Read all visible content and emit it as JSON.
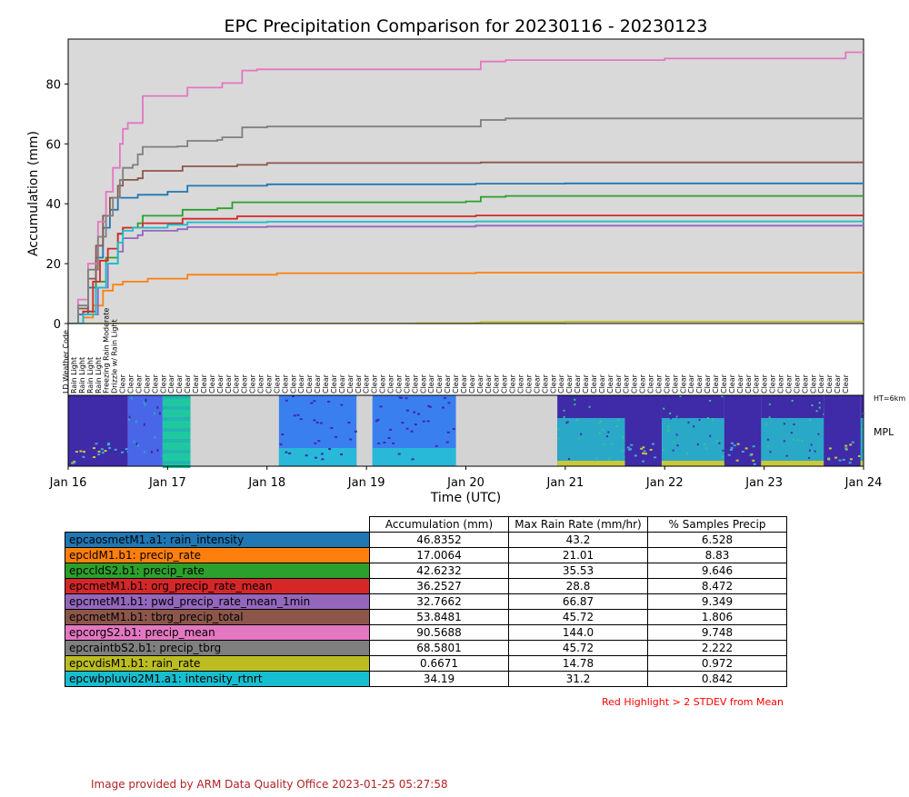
{
  "chart_data": [
    {
      "type": "line",
      "title": "EPC Precipitation Comparison for 20230116 - 20230123",
      "xlabel": "Time (UTC)",
      "ylabel": "Accumulation (mm)",
      "x_ticks": [
        "Jan 16",
        "Jan 17",
        "Jan 18",
        "Jan 19",
        "Jan 20",
        "Jan 21",
        "Jan 22",
        "Jan 23",
        "Jan 24"
      ],
      "xlim_days": [
        16,
        24
      ],
      "ylim": [
        0,
        95
      ],
      "y_ticks": [
        0,
        20,
        40,
        60,
        80
      ],
      "background": "#d9d9d9",
      "series": [
        {
          "name": "epcaosmetM1.a1: rain_intensity",
          "color": "#1f77b4",
          "points": [
            [
              16.0,
              0
            ],
            [
              16.1,
              3
            ],
            [
              16.2,
              12
            ],
            [
              16.28,
              22
            ],
            [
              16.35,
              32
            ],
            [
              16.42,
              38
            ],
            [
              16.5,
              42
            ],
            [
              16.7,
              43
            ],
            [
              17.0,
              44
            ],
            [
              17.2,
              46
            ],
            [
              18.0,
              46.5
            ],
            [
              20.1,
              46.7
            ],
            [
              21.0,
              46.8
            ],
            [
              24.0,
              46.8
            ]
          ]
        },
        {
          "name": "epcldM1.b1: precip_rate",
          "color": "#ff7f0e",
          "points": [
            [
              16.0,
              0
            ],
            [
              16.15,
              2
            ],
            [
              16.25,
              6
            ],
            [
              16.35,
              11
            ],
            [
              16.45,
              13
            ],
            [
              16.55,
              14
            ],
            [
              16.8,
              15
            ],
            [
              17.2,
              16.3
            ],
            [
              18.1,
              16.8
            ],
            [
              20.1,
              17.0
            ],
            [
              24.0,
              17.0
            ]
          ]
        },
        {
          "name": "epccldS2.b1: precip_rate",
          "color": "#2ca02c",
          "points": [
            [
              16.0,
              0
            ],
            [
              16.15,
              4
            ],
            [
              16.28,
              14
            ],
            [
              16.38,
              22
            ],
            [
              16.5,
              30
            ],
            [
              16.55,
              32
            ],
            [
              16.7,
              33.5
            ],
            [
              16.75,
              36
            ],
            [
              17.0,
              36
            ],
            [
              17.15,
              38
            ],
            [
              17.5,
              38.5
            ],
            [
              17.65,
              40.5
            ],
            [
              20.0,
              40.8
            ],
            [
              20.15,
              42.3
            ],
            [
              20.4,
              42.6
            ],
            [
              24.0,
              42.6
            ]
          ]
        },
        {
          "name": "epcmetM1.b1: org_precip_rate_mean",
          "color": "#d62728",
          "points": [
            [
              16.0,
              0
            ],
            [
              16.15,
              4
            ],
            [
              16.25,
              14
            ],
            [
              16.32,
              21
            ],
            [
              16.4,
              25
            ],
            [
              16.5,
              30
            ],
            [
              16.55,
              32
            ],
            [
              16.75,
              33.5
            ],
            [
              17.15,
              35
            ],
            [
              17.6,
              35
            ],
            [
              17.7,
              35.8
            ],
            [
              20.1,
              36.1
            ],
            [
              24.0,
              36.3
            ]
          ]
        },
        {
          "name": "epcmetM1.b1: pwd_precip_rate_mean_1min",
          "color": "#9467bd",
          "points": [
            [
              16.0,
              0
            ],
            [
              16.15,
              3
            ],
            [
              16.3,
              12
            ],
            [
              16.4,
              20
            ],
            [
              16.5,
              24
            ],
            [
              16.55,
              28.5
            ],
            [
              16.7,
              29.5
            ],
            [
              16.75,
              31
            ],
            [
              17.1,
              31.5
            ],
            [
              17.2,
              32.2
            ],
            [
              18.0,
              32.4
            ],
            [
              20.1,
              32.7
            ],
            [
              24.0,
              32.8
            ]
          ]
        },
        {
          "name": "epcmetM1.b1: tbrg_precip_total",
          "color": "#8c564b",
          "points": [
            [
              16.0,
              0
            ],
            [
              16.1,
              5
            ],
            [
              16.2,
              15
            ],
            [
              16.28,
              26
            ],
            [
              16.35,
              36
            ],
            [
              16.42,
              42
            ],
            [
              16.5,
              46
            ],
            [
              16.55,
              48
            ],
            [
              16.7,
              48.5
            ],
            [
              16.75,
              51
            ],
            [
              17.1,
              51
            ],
            [
              17.15,
              52.5
            ],
            [
              17.7,
              53
            ],
            [
              18.0,
              53.6
            ],
            [
              20.15,
              53.8
            ],
            [
              24.0,
              53.8
            ]
          ]
        },
        {
          "name": "epcorgS2.b1: precip_mean",
          "color": "#e377c2",
          "points": [
            [
              16.0,
              0
            ],
            [
              16.1,
              8
            ],
            [
              16.2,
              20
            ],
            [
              16.3,
              34
            ],
            [
              16.38,
              44
            ],
            [
              16.45,
              52
            ],
            [
              16.52,
              60
            ],
            [
              16.55,
              65
            ],
            [
              16.6,
              67
            ],
            [
              16.7,
              67
            ],
            [
              16.75,
              76
            ],
            [
              17.1,
              76
            ],
            [
              17.2,
              78.8
            ],
            [
              17.5,
              78.8
            ],
            [
              17.55,
              80.3
            ],
            [
              17.7,
              80.3
            ],
            [
              17.75,
              84.5
            ],
            [
              17.9,
              84.9
            ],
            [
              20.1,
              84.9
            ],
            [
              20.15,
              87.5
            ],
            [
              20.4,
              88
            ],
            [
              22.0,
              88.5
            ],
            [
              23.8,
              88.6
            ],
            [
              23.82,
              90.6
            ],
            [
              24.0,
              90.6
            ]
          ]
        },
        {
          "name": "epcraintbS2.b1: precip_tbrg",
          "color": "#7f7f7f",
          "points": [
            [
              16.0,
              0
            ],
            [
              16.1,
              6
            ],
            [
              16.2,
              18
            ],
            [
              16.3,
              29
            ],
            [
              16.38,
              36
            ],
            [
              16.45,
              42
            ],
            [
              16.52,
              48
            ],
            [
              16.55,
              52
            ],
            [
              16.65,
              53
            ],
            [
              16.7,
              56.5
            ],
            [
              16.75,
              59
            ],
            [
              17.1,
              59.2
            ],
            [
              17.2,
              61
            ],
            [
              17.5,
              61.3
            ],
            [
              17.55,
              62.2
            ],
            [
              17.7,
              62.2
            ],
            [
              17.75,
              65.5
            ],
            [
              18.0,
              65.8
            ],
            [
              20.1,
              65.8
            ],
            [
              20.15,
              68
            ],
            [
              20.4,
              68.5
            ],
            [
              24.0,
              68.6
            ]
          ]
        },
        {
          "name": "epcvdisM1.b1: rain_rate",
          "color": "#bcbd22",
          "points": [
            [
              16.0,
              0
            ],
            [
              19.0,
              0
            ],
            [
              19.5,
              0.1
            ],
            [
              20.1,
              0.2
            ],
            [
              20.15,
              0.5
            ],
            [
              21.0,
              0.6
            ],
            [
              24.0,
              0.7
            ]
          ]
        },
        {
          "name": "epcwbpluvio2M1.a1: intensity_rtnrt",
          "color": "#17becf",
          "points": [
            [
              16.0,
              0
            ],
            [
              16.15,
              3
            ],
            [
              16.28,
              12
            ],
            [
              16.38,
              20
            ],
            [
              16.5,
              27
            ],
            [
              16.55,
              31
            ],
            [
              16.65,
              32
            ],
            [
              17.0,
              33
            ],
            [
              17.2,
              33.8
            ],
            [
              18.0,
              34.0
            ],
            [
              20.1,
              34.1
            ],
            [
              24.0,
              34.2
            ]
          ]
        }
      ]
    },
    {
      "type": "heatmap",
      "weather_code_label": "LD Weather Code",
      "weather_codes": [
        "Rain Light",
        "Rain Light",
        "Rain Light",
        "Rain Light",
        "Freezing Rain Moderate",
        "Drizzle w/ Rain Light",
        "Clear",
        "Clear",
        "Clear",
        "Clear",
        "Clear",
        "Clear",
        "Clear",
        "Clear",
        "Clear",
        "Clear",
        "Clear",
        "Clear",
        "Clear",
        "Clear",
        "Clear",
        "Clear",
        "Clear",
        "Clear",
        "Clear",
        "Clear",
        "Clear",
        "Clear",
        "Clear",
        "Clear",
        "Clear",
        "Clear",
        "Clear",
        "Clear",
        "Clear",
        "Clear",
        "Clear",
        "Clear",
        "Clear",
        "Clear",
        "Clear",
        "Clear",
        "Clear",
        "Clear",
        "Clear",
        "Clear",
        "Clear",
        "Clear",
        "Clear",
        "Clear",
        "Clear",
        "Clear",
        "Clear",
        "Clear",
        "Clear",
        "Clear",
        "Clear",
        "Clear",
        "Clear",
        "Clear",
        "Clear",
        "Clear",
        "Clear",
        "Clear",
        "Clear",
        "Clear",
        "Clear",
        "Clear",
        "Clear",
        "Clear",
        "Clear",
        "Clear",
        "Clear",
        "Clear",
        "Clear",
        "Clear",
        "Clear",
        "Clear",
        "Clear",
        "Clear",
        "Clear",
        "Clear",
        "Clear",
        "Clear",
        "Clear",
        "Clear",
        "Clear",
        "Clear",
        "Clear",
        "Clear",
        "Clear",
        "Clear",
        "Clear",
        "Clear",
        "Clear",
        "Clear"
      ],
      "mpl_label": "MPL",
      "height_label": "HT=6km",
      "mpl_segments": [
        {
          "start": 16.0,
          "end": 16.6,
          "style": "dense"
        },
        {
          "start": 16.6,
          "end": 16.95,
          "style": "sparse"
        },
        {
          "start": 16.95,
          "end": 17.23,
          "style": "stripes"
        },
        {
          "start": 17.23,
          "end": 18.12,
          "style": "gap"
        },
        {
          "start": 18.12,
          "end": 18.9,
          "style": "mid"
        },
        {
          "start": 18.9,
          "end": 19.06,
          "style": "gap"
        },
        {
          "start": 19.06,
          "end": 19.9,
          "style": "mid"
        },
        {
          "start": 19.9,
          "end": 20.92,
          "style": "gap"
        },
        {
          "start": 20.92,
          "end": 21.6,
          "style": "teal"
        },
        {
          "start": 21.6,
          "end": 21.97,
          "style": "dense"
        },
        {
          "start": 21.97,
          "end": 22.6,
          "style": "teal"
        },
        {
          "start": 22.6,
          "end": 22.97,
          "style": "dense"
        },
        {
          "start": 22.97,
          "end": 23.6,
          "style": "teal"
        },
        {
          "start": 23.6,
          "end": 23.97,
          "style": "dense"
        },
        {
          "start": 23.97,
          "end": 24.0,
          "style": "teal"
        }
      ]
    }
  ],
  "table": {
    "headers": [
      "Accumulation (mm)",
      "Max Rain Rate (mm/hr)",
      "% Samples Precip"
    ],
    "rows": [
      {
        "name": "epcaosmetM1.a1: rain_intensity",
        "color": "#1f77b4",
        "acc": "46.8352",
        "max": "43.2",
        "pct": "6.528"
      },
      {
        "name": "epcldM1.b1: precip_rate",
        "color": "#ff7f0e",
        "acc": "17.0064",
        "max": "21.01",
        "pct": "8.83"
      },
      {
        "name": "epccldS2.b1: precip_rate",
        "color": "#2ca02c",
        "acc": "42.6232",
        "max": "35.53",
        "pct": "9.646"
      },
      {
        "name": "epcmetM1.b1: org_precip_rate_mean",
        "color": "#d62728",
        "acc": "36.2527",
        "max": "28.8",
        "pct": "8.472"
      },
      {
        "name": "epcmetM1.b1: pwd_precip_rate_mean_1min",
        "color": "#9467bd",
        "acc": "32.7662",
        "max": "66.87",
        "pct": "9.349"
      },
      {
        "name": "epcmetM1.b1: tbrg_precip_total",
        "color": "#8c564b",
        "acc": "53.8481",
        "max": "45.72",
        "pct": "1.806"
      },
      {
        "name": "epcorgS2.b1: precip_mean",
        "color": "#e377c2",
        "acc": "90.5688",
        "max": "144.0",
        "pct": "9.748"
      },
      {
        "name": "epcraintbS2.b1: precip_tbrg",
        "color": "#7f7f7f",
        "acc": "68.5801",
        "max": "45.72",
        "pct": "2.222"
      },
      {
        "name": "epcvdisM1.b1: rain_rate",
        "color": "#bcbd22",
        "acc": "0.6671",
        "max": "14.78",
        "pct": "0.972"
      },
      {
        "name": "epcwbpluvio2M1.a1: intensity_rtnrt",
        "color": "#17becf",
        "acc": "34.19",
        "max": "31.2",
        "pct": "0.842"
      }
    ],
    "note": "Red Highlight > 2 STDEV from Mean"
  },
  "footer": "Image provided by ARM Data Quality Office 2023-01-25 05:27:58"
}
